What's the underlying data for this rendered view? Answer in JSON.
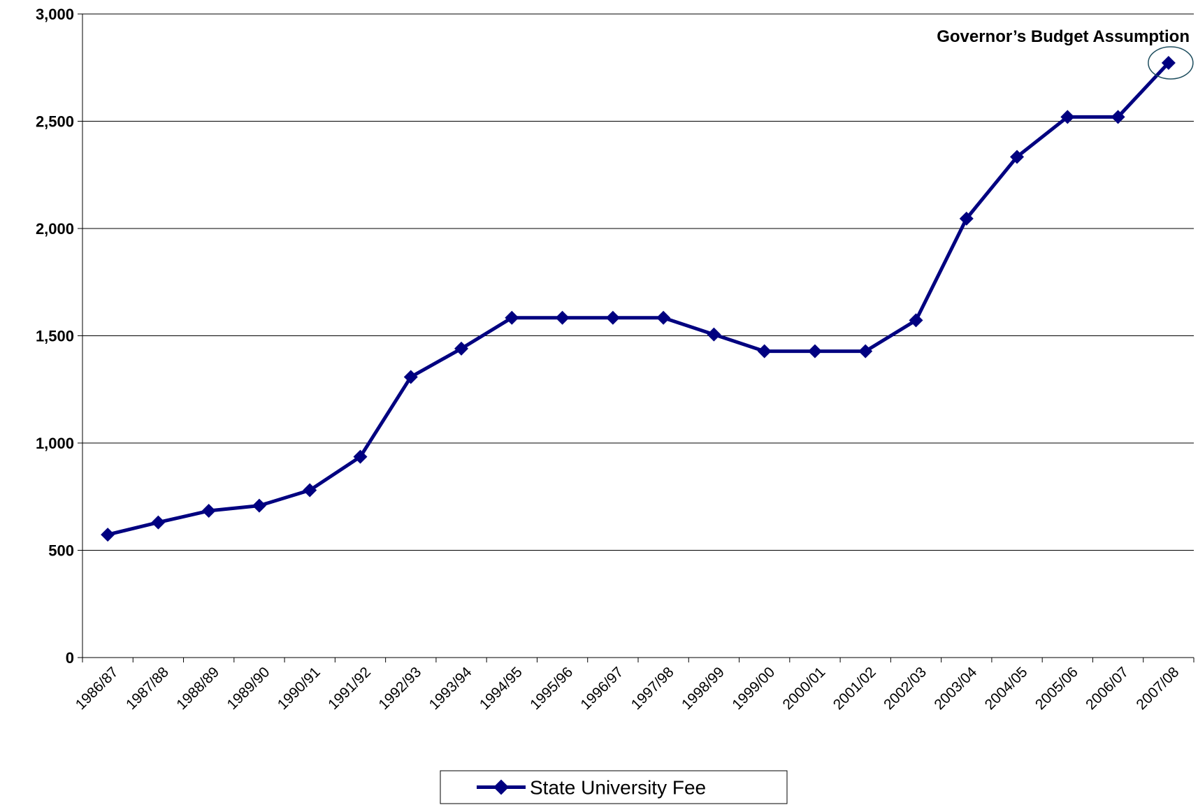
{
  "chart_data": {
    "type": "line",
    "title": "",
    "xlabel": "",
    "ylabel": "",
    "ylim": [
      0,
      3000
    ],
    "y_ticks": [
      0,
      500,
      1000,
      1500,
      2000,
      2500,
      3000
    ],
    "y_tick_labels": [
      "0",
      "500",
      "1,000",
      "1,500",
      "2,000",
      "2,500",
      "3,000"
    ],
    "categories": [
      "1986/87",
      "1987/88",
      "1988/89",
      "1989/90",
      "1990/91",
      "1991/92",
      "1992/93",
      "1993/94",
      "1994/95",
      "1995/96",
      "1996/97",
      "1997/98",
      "1998/99",
      "1999/00",
      "2000/01",
      "2001/02",
      "2002/03",
      "2003/04",
      "2004/05",
      "2005/06",
      "2006/07",
      "2007/08"
    ],
    "series": [
      {
        "name": "State University Fee",
        "color": "#000080",
        "marker": "diamond",
        "values": [
          573,
          630,
          684,
          708,
          780,
          936,
          1308,
          1440,
          1584,
          1584,
          1584,
          1584,
          1506,
          1428,
          1428,
          1428,
          1572,
          2046,
          2334,
          2520,
          2520,
          2772
        ]
      }
    ],
    "grid": {
      "horizontal": true,
      "vertical": false
    },
    "legend": {
      "position": "bottom-center",
      "entries": [
        "State University Fee"
      ]
    },
    "annotation": {
      "text": "Governor’s Budget Assumption",
      "category": "2007/08",
      "circle_color": "#1f4e5f"
    }
  }
}
